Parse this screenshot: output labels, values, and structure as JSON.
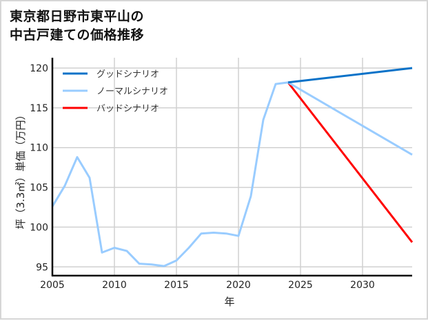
{
  "title": {
    "line1": "東京都日野市東平山の",
    "line2": "中古戸建ての価格推移"
  },
  "chart_data": {
    "type": "line",
    "title": "東京都日野市東平山の中古戸建ての価格推移",
    "xlabel": "年",
    "ylabel": "坪（3.3㎡）単価（万円）",
    "xlim": [
      2005,
      2034
    ],
    "ylim": [
      93.9,
      121.3
    ],
    "xticks": [
      2005,
      2010,
      2015,
      2020,
      2025,
      2030
    ],
    "yticks": [
      95,
      100,
      105,
      110,
      115,
      120
    ],
    "grid": true,
    "legend_position": "upper left",
    "series": [
      {
        "name": "グッドシナリオ",
        "color": "#0a72c8",
        "x": [
          2024,
          2034
        ],
        "values": [
          118.2,
          120.0
        ]
      },
      {
        "name": "ノーマルシナリオ",
        "color": "#99ccff",
        "x": [
          2005,
          2006,
          2007,
          2008,
          2009,
          2010,
          2011,
          2012,
          2013,
          2014,
          2015,
          2016,
          2017,
          2018,
          2019,
          2020,
          2021,
          2022,
          2023,
          2024,
          2034
        ],
        "values": [
          102.6,
          105.2,
          108.8,
          106.2,
          96.8,
          97.4,
          97.0,
          95.4,
          95.3,
          95.1,
          95.8,
          97.4,
          99.2,
          99.3,
          99.2,
          98.9,
          103.9,
          113.5,
          118.0,
          118.2,
          109.1
        ]
      },
      {
        "name": "バッドシナリオ",
        "color": "#ff0000",
        "x": [
          2024,
          2034
        ],
        "values": [
          118.2,
          98.1
        ]
      }
    ]
  }
}
